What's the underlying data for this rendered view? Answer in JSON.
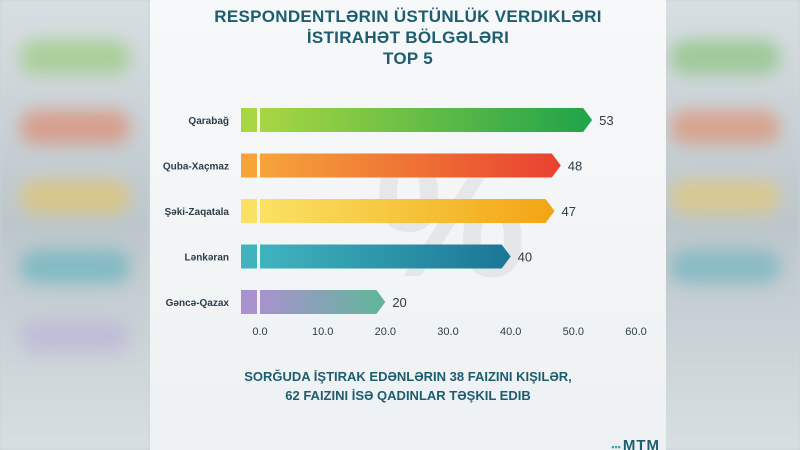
{
  "title_lines": [
    "RESPONDENTLƏRIN ÜSTÜNLÜK VERDIKLƏRI",
    "İSTIRAHƏT BÖLGƏLƏRI",
    "TOP 5"
  ],
  "footer_lines": [
    "SORĞUDA İŞTIRAK EDƏNLƏRIN 38 FAIZINI KIŞILƏR,",
    "62 FAIZINI İSƏ QADINLAR TƏŞKIL EDIB"
  ],
  "watermark": "%",
  "logo": "MTM",
  "chart_data": {
    "type": "bar",
    "orientation": "horizontal",
    "categories": [
      "Qarabağ",
      "Quba-Xaçmaz",
      "Şəki-Zaqatala",
      "Lənkəran",
      "Gəncə-Qazax"
    ],
    "values": [
      53,
      48,
      47,
      40,
      20
    ],
    "value_labels": [
      "53",
      "48",
      "47",
      "40",
      "20"
    ],
    "x_ticks": [
      "0.0",
      "10.0",
      "20.0",
      "30.0",
      "40.0",
      "50.0",
      "60.0"
    ],
    "xlim": [
      0,
      60
    ],
    "grid": false,
    "bar_colors": [
      [
        "#a8d642",
        "#1fa34a"
      ],
      [
        "#f6a43a",
        "#e8412f"
      ],
      [
        "#fbe163",
        "#f2a514"
      ],
      [
        "#3fb4bd",
        "#1a7695"
      ],
      [
        "#a892cf",
        "#60b69a"
      ]
    ]
  }
}
